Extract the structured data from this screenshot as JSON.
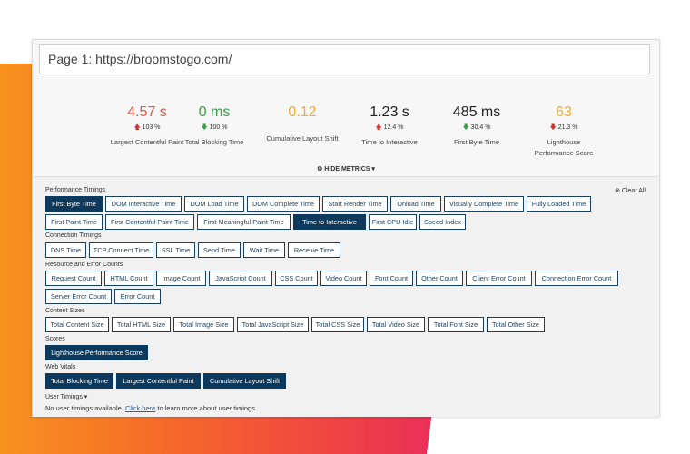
{
  "page": {
    "title": "Page 1: https://broomstogo.com/"
  },
  "metrics": [
    {
      "value": "4.57 s",
      "delta": "103 %",
      "direction": "up",
      "label": "Largest Contentful Paint",
      "color": "#e05a47"
    },
    {
      "value": "0 ms",
      "delta": "100 %",
      "direction": "down",
      "label": "Total Blocking Time",
      "color": "#3aa047"
    },
    {
      "value": "0.12",
      "delta": "",
      "direction": "",
      "label": "Cumulative Layout Shift",
      "color": "#f1ad2f"
    },
    {
      "value": "1.23 s",
      "delta": "12.4 %",
      "direction": "up",
      "label": "Time to Interactive",
      "color": "#222222"
    },
    {
      "value": "485 ms",
      "delta": "30.4 %",
      "direction": "down",
      "label": "First Byte Time",
      "color": "#222222"
    },
    {
      "value": "63",
      "delta": "21.3 %",
      "direction": "down",
      "label": "Lighthouse Performance Score",
      "color": "#f1ad2f"
    }
  ],
  "hide_metrics": "HIDE METRICS",
  "clear_all": "Clear All",
  "sections": {
    "performance": {
      "label": "Performance Timings",
      "buttons": [
        "First Byte Time",
        "DOM Interactive Time",
        "DOM Load Time",
        "DOM Complete Time",
        "Start Render Time",
        "Onload Time",
        "Visually Complete Time",
        "Fully Loaded Time",
        "First Paint Time",
        "First Contentful Paint Time",
        "First Meaningful Paint Time",
        "Time to Interactive",
        "First CPU Idle",
        "Speed Index"
      ]
    },
    "connection": {
      "label": "Connection Timings",
      "buttons": [
        "DNS Time",
        "TCP Connect Time",
        "SSL Time",
        "Send Time",
        "Wait Time",
        "Receive Time"
      ]
    },
    "resource": {
      "label": "Resource and Error Counts",
      "buttons": [
        "Request Count",
        "HTML Count",
        "Image Count",
        "JavaScript Count",
        "CSS Count",
        "Video Count",
        "Font Count",
        "Other Count",
        "Client Error Count",
        "Connection Error Count",
        "Server Error Count",
        "Error Count"
      ]
    },
    "sizes": {
      "label": "Content Sizes",
      "buttons": [
        "Total Content Size",
        "Total HTML Size",
        "Total Image Size",
        "Total JavaScript Size",
        "Total CSS Size",
        "Total Video Size",
        "Total Font Size",
        "Total Other Size"
      ]
    },
    "scores": {
      "label": "Scores",
      "buttons": [
        "Lighthouse Performance Score"
      ]
    },
    "vitals": {
      "label": "Web Vitals",
      "buttons": [
        "Total Blocking Time",
        "Largest Contentful Paint",
        "Cumulative Layout Shift"
      ]
    },
    "user": {
      "label": "User Timings"
    }
  },
  "note": {
    "text_before": "No user timings available. ",
    "link": "Click here",
    "text_after": " to learn more about user timings."
  }
}
